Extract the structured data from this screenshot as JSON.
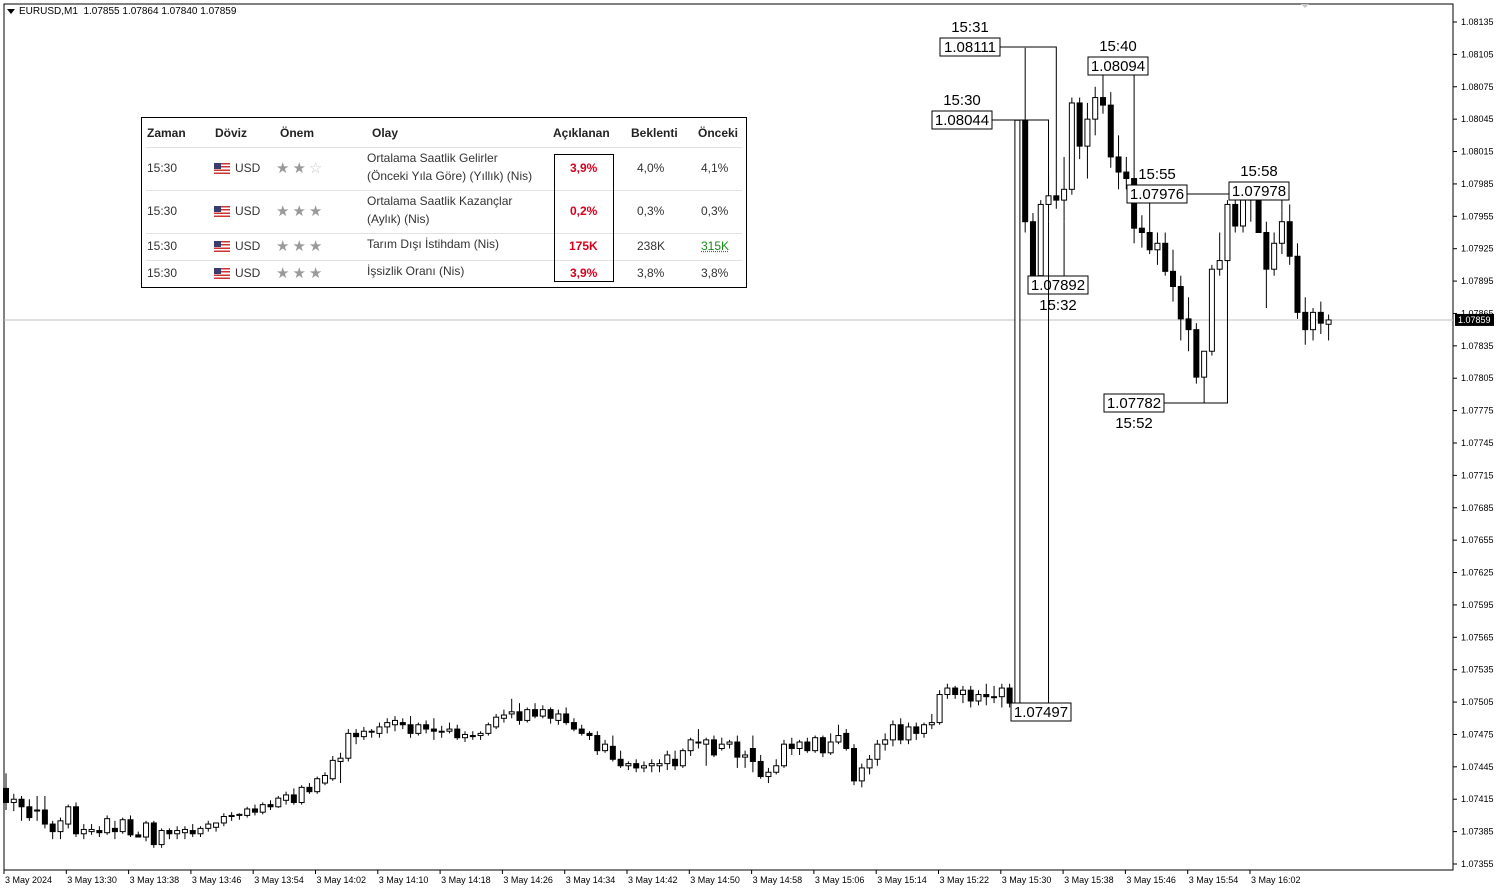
{
  "symbol_line": {
    "symbol": "EURUSD,M1",
    "ohlc": "1.07855 1.07864 1.07840 1.07859"
  },
  "current_price": "1.07859",
  "calendar": {
    "headers": [
      "Zaman",
      "Döviz",
      "Önem",
      "Olay",
      "Açıklanan",
      "Beklenti",
      "Önceki"
    ],
    "rows": [
      {
        "time": "15:30",
        "currency": "USD",
        "importance": 2,
        "event_line1": "Ortalama Saatlik Gelirler",
        "event_line2": "(Önceki Yıla Göre) (Yıllık) (Nis)",
        "actual": "3,9%",
        "forecast": "4,0%",
        "previous": "4,1%"
      },
      {
        "time": "15:30",
        "currency": "USD",
        "importance": 3,
        "event_line1": "Ortalama Saatlik Kazançlar",
        "event_line2": "(Aylık) (Nis)",
        "actual": "0,2%",
        "forecast": "0,3%",
        "previous": "0,3%"
      },
      {
        "time": "15:30",
        "currency": "USD",
        "importance": 3,
        "event_line1": "Tarım Dışı İstihdam (Nis)",
        "event_line2": "",
        "actual": "175K",
        "forecast": "238K",
        "previous": "315K"
      },
      {
        "time": "15:30",
        "currency": "USD",
        "importance": 3,
        "event_line1": "İşsizlik Oranı (Nis)",
        "event_line2": "",
        "actual": "3,9%",
        "forecast": "3,8%",
        "previous": "3,8%"
      }
    ]
  },
  "chart_data": {
    "type": "candlestick",
    "symbol": "EURUSD",
    "timeframe": "M1",
    "y_ticks": [
      "1.08135",
      "1.08105",
      "1.08075",
      "1.08045",
      "1.08015",
      "1.07985",
      "1.07955",
      "1.07925",
      "1.07895",
      "1.07865",
      "1.07835",
      "1.07805",
      "1.07775",
      "1.07745",
      "1.07715",
      "1.07685",
      "1.07655",
      "1.07625",
      "1.07595",
      "1.07565",
      "1.07535",
      "1.07505",
      "1.07475",
      "1.07445",
      "1.07415",
      "1.07385",
      "1.07355"
    ],
    "ylim": [
      1.07355,
      1.08135
    ],
    "x_ticks": [
      "3 May 2024",
      "3 May 13:30",
      "3 May 13:38",
      "3 May 13:46",
      "3 May 13:54",
      "3 May 14:02",
      "3 May 14:10",
      "3 May 14:18",
      "3 May 14:26",
      "3 May 14:34",
      "3 May 14:42",
      "3 May 14:50",
      "3 May 14:58",
      "3 May 15:06",
      "3 May 15:14",
      "3 May 15:22",
      "3 May 15:30",
      "3 May 15:38",
      "3 May 15:46",
      "3 May 15:54",
      "3 May 16:02"
    ],
    "callouts": [
      {
        "time": "15:31",
        "price": "1.08111"
      },
      {
        "time": "15:30",
        "price": "1.08044"
      },
      {
        "time": "15:40",
        "price": "1.08094"
      },
      {
        "time": "15:55",
        "price": "1.07976"
      },
      {
        "time": "15:58",
        "price": "1.07978"
      },
      {
        "time": "15:32",
        "price": "1.07892"
      },
      {
        "time": "15:52",
        "price": "1.07782"
      },
      {
        "time": "",
        "price": "1.07497"
      }
    ],
    "candles": [
      [
        1.07425,
        1.07439,
        1.07405,
        1.07412
      ],
      [
        1.07412,
        1.0742,
        1.07404,
        1.07415
      ],
      [
        1.07415,
        1.07418,
        1.07395,
        1.07408
      ],
      [
        1.07408,
        1.07415,
        1.07395,
        1.07398
      ],
      [
        1.07405,
        1.07418,
        1.07395,
        1.07405
      ],
      [
        1.07405,
        1.07418,
        1.07388,
        1.07392
      ],
      [
        1.07392,
        1.07395,
        1.07378,
        1.07385
      ],
      [
        1.07385,
        1.07398,
        1.07378,
        1.07395
      ],
      [
        1.07392,
        1.0741,
        1.07388,
        1.07408
      ],
      [
        1.07408,
        1.07412,
        1.0738,
        1.07383
      ],
      [
        1.07383,
        1.07392,
        1.07378,
        1.07387
      ],
      [
        1.07385,
        1.07392,
        1.07382,
        1.07387
      ],
      [
        1.07386,
        1.0739,
        1.0738,
        1.07384
      ],
      [
        1.07384,
        1.074,
        1.07382,
        1.07397
      ],
      [
        1.07388,
        1.07395,
        1.07378,
        1.07385
      ],
      [
        1.07385,
        1.07398,
        1.07383,
        1.07396
      ],
      [
        1.07396,
        1.074,
        1.0738,
        1.07382
      ],
      [
        1.07382,
        1.07385,
        1.0738,
        1.0738
      ],
      [
        1.0738,
        1.07395,
        1.07376,
        1.07393
      ],
      [
        1.07393,
        1.07395,
        1.0737,
        1.07373
      ],
      [
        1.07373,
        1.07388,
        1.0737,
        1.07386
      ],
      [
        1.07386,
        1.07388,
        1.07378,
        1.07383
      ],
      [
        1.07383,
        1.0739,
        1.07378,
        1.07386
      ],
      [
        1.07384,
        1.0739,
        1.07378,
        1.07387
      ],
      [
        1.07386,
        1.07392,
        1.0738,
        1.07383
      ],
      [
        1.07383,
        1.0739,
        1.0738,
        1.07388
      ],
      [
        1.07388,
        1.07395,
        1.07385,
        1.07392
      ],
      [
        1.07389,
        1.07393,
        1.07385,
        1.07393
      ],
      [
        1.07393,
        1.07402,
        1.0739,
        1.07399
      ],
      [
        1.07399,
        1.07403,
        1.07395,
        1.074
      ],
      [
        1.074,
        1.07402,
        1.07396,
        1.07401
      ],
      [
        1.074,
        1.07408,
        1.07398,
        1.07406
      ],
      [
        1.07406,
        1.0741,
        1.074,
        1.07403
      ],
      [
        1.07403,
        1.07412,
        1.07401,
        1.0741
      ],
      [
        1.0741,
        1.07414,
        1.07405,
        1.07408
      ],
      [
        1.07408,
        1.07418,
        1.07407,
        1.07416
      ],
      [
        1.07414,
        1.07422,
        1.0741,
        1.07419
      ],
      [
        1.07419,
        1.07425,
        1.0741,
        1.07412
      ],
      [
        1.07412,
        1.07428,
        1.0741,
        1.07426
      ],
      [
        1.07426,
        1.0743,
        1.0742,
        1.07422
      ],
      [
        1.07422,
        1.07436,
        1.0742,
        1.07434
      ],
      [
        1.0743,
        1.0744,
        1.07428,
        1.07437
      ],
      [
        1.07434,
        1.07455,
        1.07432,
        1.07451
      ],
      [
        1.0745,
        1.07458,
        1.0743,
        1.07453
      ],
      [
        1.07453,
        1.0748,
        1.0745,
        1.07476
      ],
      [
        1.07476,
        1.0748,
        1.07466,
        1.07473
      ],
      [
        1.07473,
        1.07482,
        1.0747,
        1.07478
      ],
      [
        1.07478,
        1.0748,
        1.07472,
        1.07478
      ],
      [
        1.07476,
        1.07486,
        1.07472,
        1.07482
      ],
      [
        1.07482,
        1.0749,
        1.07476,
        1.07486
      ],
      [
        1.07484,
        1.07492,
        1.07478,
        1.07488
      ],
      [
        1.07486,
        1.0749,
        1.0748,
        1.07484
      ],
      [
        1.07484,
        1.07492,
        1.07472,
        1.07476
      ],
      [
        1.07476,
        1.07486,
        1.07474,
        1.07484
      ],
      [
        1.07484,
        1.07488,
        1.07476,
        1.0748
      ],
      [
        1.0748,
        1.0749,
        1.0747,
        1.07478
      ],
      [
        1.07478,
        1.07483,
        1.07472,
        1.07478
      ],
      [
        1.07478,
        1.07486,
        1.07476,
        1.0748
      ],
      [
        1.0748,
        1.07484,
        1.0747,
        1.07472
      ],
      [
        1.07472,
        1.07478,
        1.07468,
        1.07475
      ],
      [
        1.07474,
        1.07478,
        1.0747,
        1.07473
      ],
      [
        1.07474,
        1.07478,
        1.0747,
        1.07476
      ],
      [
        1.07476,
        1.07486,
        1.07474,
        1.07484
      ],
      [
        1.07482,
        1.07494,
        1.0748,
        1.07491
      ],
      [
        1.0749,
        1.07498,
        1.07486,
        1.07493
      ],
      [
        1.07494,
        1.07508,
        1.0749,
        1.07496
      ],
      [
        1.07496,
        1.07504,
        1.07484,
        1.07488
      ],
      [
        1.07488,
        1.075,
        1.07486,
        1.07498
      ],
      [
        1.07498,
        1.07504,
        1.0749,
        1.07492
      ],
      [
        1.07492,
        1.07502,
        1.0749,
        1.07498
      ],
      [
        1.07498,
        1.075,
        1.07485,
        1.0749
      ],
      [
        1.07488,
        1.07498,
        1.07484,
        1.07494
      ],
      [
        1.07494,
        1.075,
        1.07484,
        1.07486
      ],
      [
        1.07486,
        1.0749,
        1.07478,
        1.0748
      ],
      [
        1.0748,
        1.07484,
        1.07474,
        1.07476
      ],
      [
        1.07476,
        1.07478,
        1.0747,
        1.07474
      ],
      [
        1.07474,
        1.07478,
        1.07456,
        1.0746
      ],
      [
        1.0746,
        1.0747,
        1.07458,
        1.07466
      ],
      [
        1.07464,
        1.07474,
        1.0745,
        1.07452
      ],
      [
        1.07452,
        1.0746,
        1.07444,
        1.07446
      ],
      [
        1.07446,
        1.0745,
        1.07442,
        1.07448
      ],
      [
        1.07448,
        1.07452,
        1.0744,
        1.07444
      ],
      [
        1.07444,
        1.0745,
        1.0744,
        1.07446
      ],
      [
        1.07446,
        1.07452,
        1.0744,
        1.07448
      ],
      [
        1.07446,
        1.07452,
        1.0744,
        1.07448
      ],
      [
        1.07448,
        1.0746,
        1.07442,
        1.07456
      ],
      [
        1.07452,
        1.0746,
        1.07442,
        1.07446
      ],
      [
        1.07446,
        1.07462,
        1.07444,
        1.0746
      ],
      [
        1.0746,
        1.07472,
        1.07455,
        1.0747
      ],
      [
        1.07468,
        1.0748,
        1.07462,
        1.07468
      ],
      [
        1.07466,
        1.07472,
        1.07446,
        1.0747
      ],
      [
        1.0747,
        1.07474,
        1.07454,
        1.07456
      ],
      [
        1.07462,
        1.07472,
        1.0746,
        1.07466
      ],
      [
        1.07466,
        1.0747,
        1.07462,
        1.07468
      ],
      [
        1.07468,
        1.07474,
        1.07444,
        1.07454
      ],
      [
        1.07454,
        1.0746,
        1.07444,
        1.07456
      ],
      [
        1.07462,
        1.07474,
        1.0744,
        1.0745
      ],
      [
        1.0745,
        1.07456,
        1.07434,
        1.07436
      ],
      [
        1.07436,
        1.07444,
        1.0743,
        1.0744
      ],
      [
        1.0744,
        1.07452,
        1.07438,
        1.07446
      ],
      [
        1.07446,
        1.0747,
        1.07444,
        1.07466
      ],
      [
        1.07466,
        1.07472,
        1.07456,
        1.07462
      ],
      [
        1.07462,
        1.0747,
        1.07456,
        1.07468
      ],
      [
        1.07468,
        1.07472,
        1.07458,
        1.0746
      ],
      [
        1.0746,
        1.07474,
        1.07458,
        1.07472
      ],
      [
        1.07472,
        1.07474,
        1.07454,
        1.07458
      ],
      [
        1.07458,
        1.07476,
        1.07456,
        1.07468
      ],
      [
        1.07468,
        1.07484,
        1.07466,
        1.07474
      ],
      [
        1.07476,
        1.0748,
        1.0746,
        1.07462
      ],
      [
        1.07462,
        1.07466,
        1.07428,
        1.07432
      ],
      [
        1.07432,
        1.07448,
        1.07426,
        1.07444
      ],
      [
        1.07444,
        1.07456,
        1.07438,
        1.07452
      ],
      [
        1.07452,
        1.0747,
        1.07446,
        1.07466
      ],
      [
        1.07466,
        1.07476,
        1.0746,
        1.0747
      ],
      [
        1.0747,
        1.07488,
        1.07464,
        1.07484
      ],
      [
        1.07484,
        1.0749,
        1.07466,
        1.0747
      ],
      [
        1.0747,
        1.07486,
        1.07466,
        1.07482
      ],
      [
        1.07482,
        1.07486,
        1.0747,
        1.07476
      ],
      [
        1.07476,
        1.07486,
        1.07472,
        1.07484
      ],
      [
        1.07484,
        1.07494,
        1.0748,
        1.07486
      ],
      [
        1.07486,
        1.07516,
        1.07484,
        1.07512
      ],
      [
        1.07512,
        1.07522,
        1.07508,
        1.07518
      ],
      [
        1.07518,
        1.0752,
        1.07508,
        1.07512
      ],
      [
        1.07512,
        1.0752,
        1.07504,
        1.07516
      ],
      [
        1.07516,
        1.0752,
        1.075,
        1.07506
      ],
      [
        1.07506,
        1.07516,
        1.07502,
        1.07512
      ],
      [
        1.07512,
        1.07522,
        1.07502,
        1.0751
      ],
      [
        1.0751,
        1.0752,
        1.07504,
        1.0751
      ],
      [
        1.0751,
        1.07522,
        1.075,
        1.07518
      ],
      [
        1.07518,
        1.07522,
        1.075,
        1.07504
      ],
      [
        1.07504,
        1.08044,
        1.07497,
        1.08044
      ],
      [
        1.08044,
        1.08111,
        1.0794,
        1.0795
      ],
      [
        1.0795,
        1.07958,
        1.07892,
        1.079
      ],
      [
        1.079,
        1.0797,
        1.07894,
        1.07966
      ],
      [
        1.07966,
        1.07994,
        1.0795,
        1.07974
      ],
      [
        1.07974,
        1.08008,
        1.07962,
        1.0797
      ],
      [
        1.0797,
        1.0801,
        1.0795,
        1.0798
      ],
      [
        1.0798,
        1.08065,
        1.07975,
        1.0806
      ],
      [
        1.0806,
        1.08065,
        1.08008,
        1.0802
      ],
      [
        1.0802,
        1.0806,
        1.0799,
        1.08045
      ],
      [
        1.08045,
        1.08075,
        1.0803,
        1.08065
      ],
      [
        1.08065,
        1.08094,
        1.0805,
        1.08058
      ],
      [
        1.08058,
        1.0807,
        1.08,
        1.0801
      ],
      [
        1.0801,
        1.0803,
        1.0798,
        1.07996
      ],
      [
        1.07996,
        1.0801,
        1.0798,
        1.0799
      ],
      [
        1.0799,
        1.07994,
        1.0793,
        1.07944
      ],
      [
        1.07944,
        1.07956,
        1.07926,
        1.0794
      ],
      [
        1.0794,
        1.07976,
        1.0792,
        1.07924
      ],
      [
        1.07924,
        1.0794,
        1.0791,
        1.0793
      ],
      [
        1.0793,
        1.0794,
        1.079,
        1.07904
      ],
      [
        1.07904,
        1.07924,
        1.07876,
        1.0789
      ],
      [
        1.0789,
        1.079,
        1.0784,
        1.0786
      ],
      [
        1.0786,
        1.0788,
        1.0783,
        1.0785
      ],
      [
        1.0785,
        1.07856,
        1.078,
        1.07806
      ],
      [
        1.07806,
        1.0783,
        1.07782,
        1.0783
      ],
      [
        1.0783,
        1.0791,
        1.07826,
        1.07906
      ],
      [
        1.07906,
        1.0794,
        1.079,
        1.07914
      ],
      [
        1.07914,
        1.0797,
        1.0791,
        1.07966
      ],
      [
        1.07966,
        1.07976,
        1.0794,
        1.07946
      ],
      [
        1.07946,
        1.07976,
        1.0794,
        1.0797
      ],
      [
        1.0797,
        1.07976,
        1.0795,
        1.07972
      ],
      [
        1.07972,
        1.07978,
        1.0794,
        1.0794
      ],
      [
        1.0794,
        1.0795,
        1.0787,
        1.07906
      ],
      [
        1.07906,
        1.0794,
        1.079,
        1.0793
      ],
      [
        1.0793,
        1.0796,
        1.0792,
        1.0795
      ],
      [
        1.0795,
        1.07966,
        1.0791,
        1.07918
      ],
      [
        1.07918,
        1.0793,
        1.0786,
        1.07866
      ],
      [
        1.07866,
        1.0788,
        1.07836,
        1.0785
      ],
      [
        1.0785,
        1.0787,
        1.0784,
        1.07866
      ],
      [
        1.07866,
        1.07876,
        1.07846,
        1.07856
      ],
      [
        1.07855,
        1.07864,
        1.0784,
        1.07859
      ]
    ]
  }
}
